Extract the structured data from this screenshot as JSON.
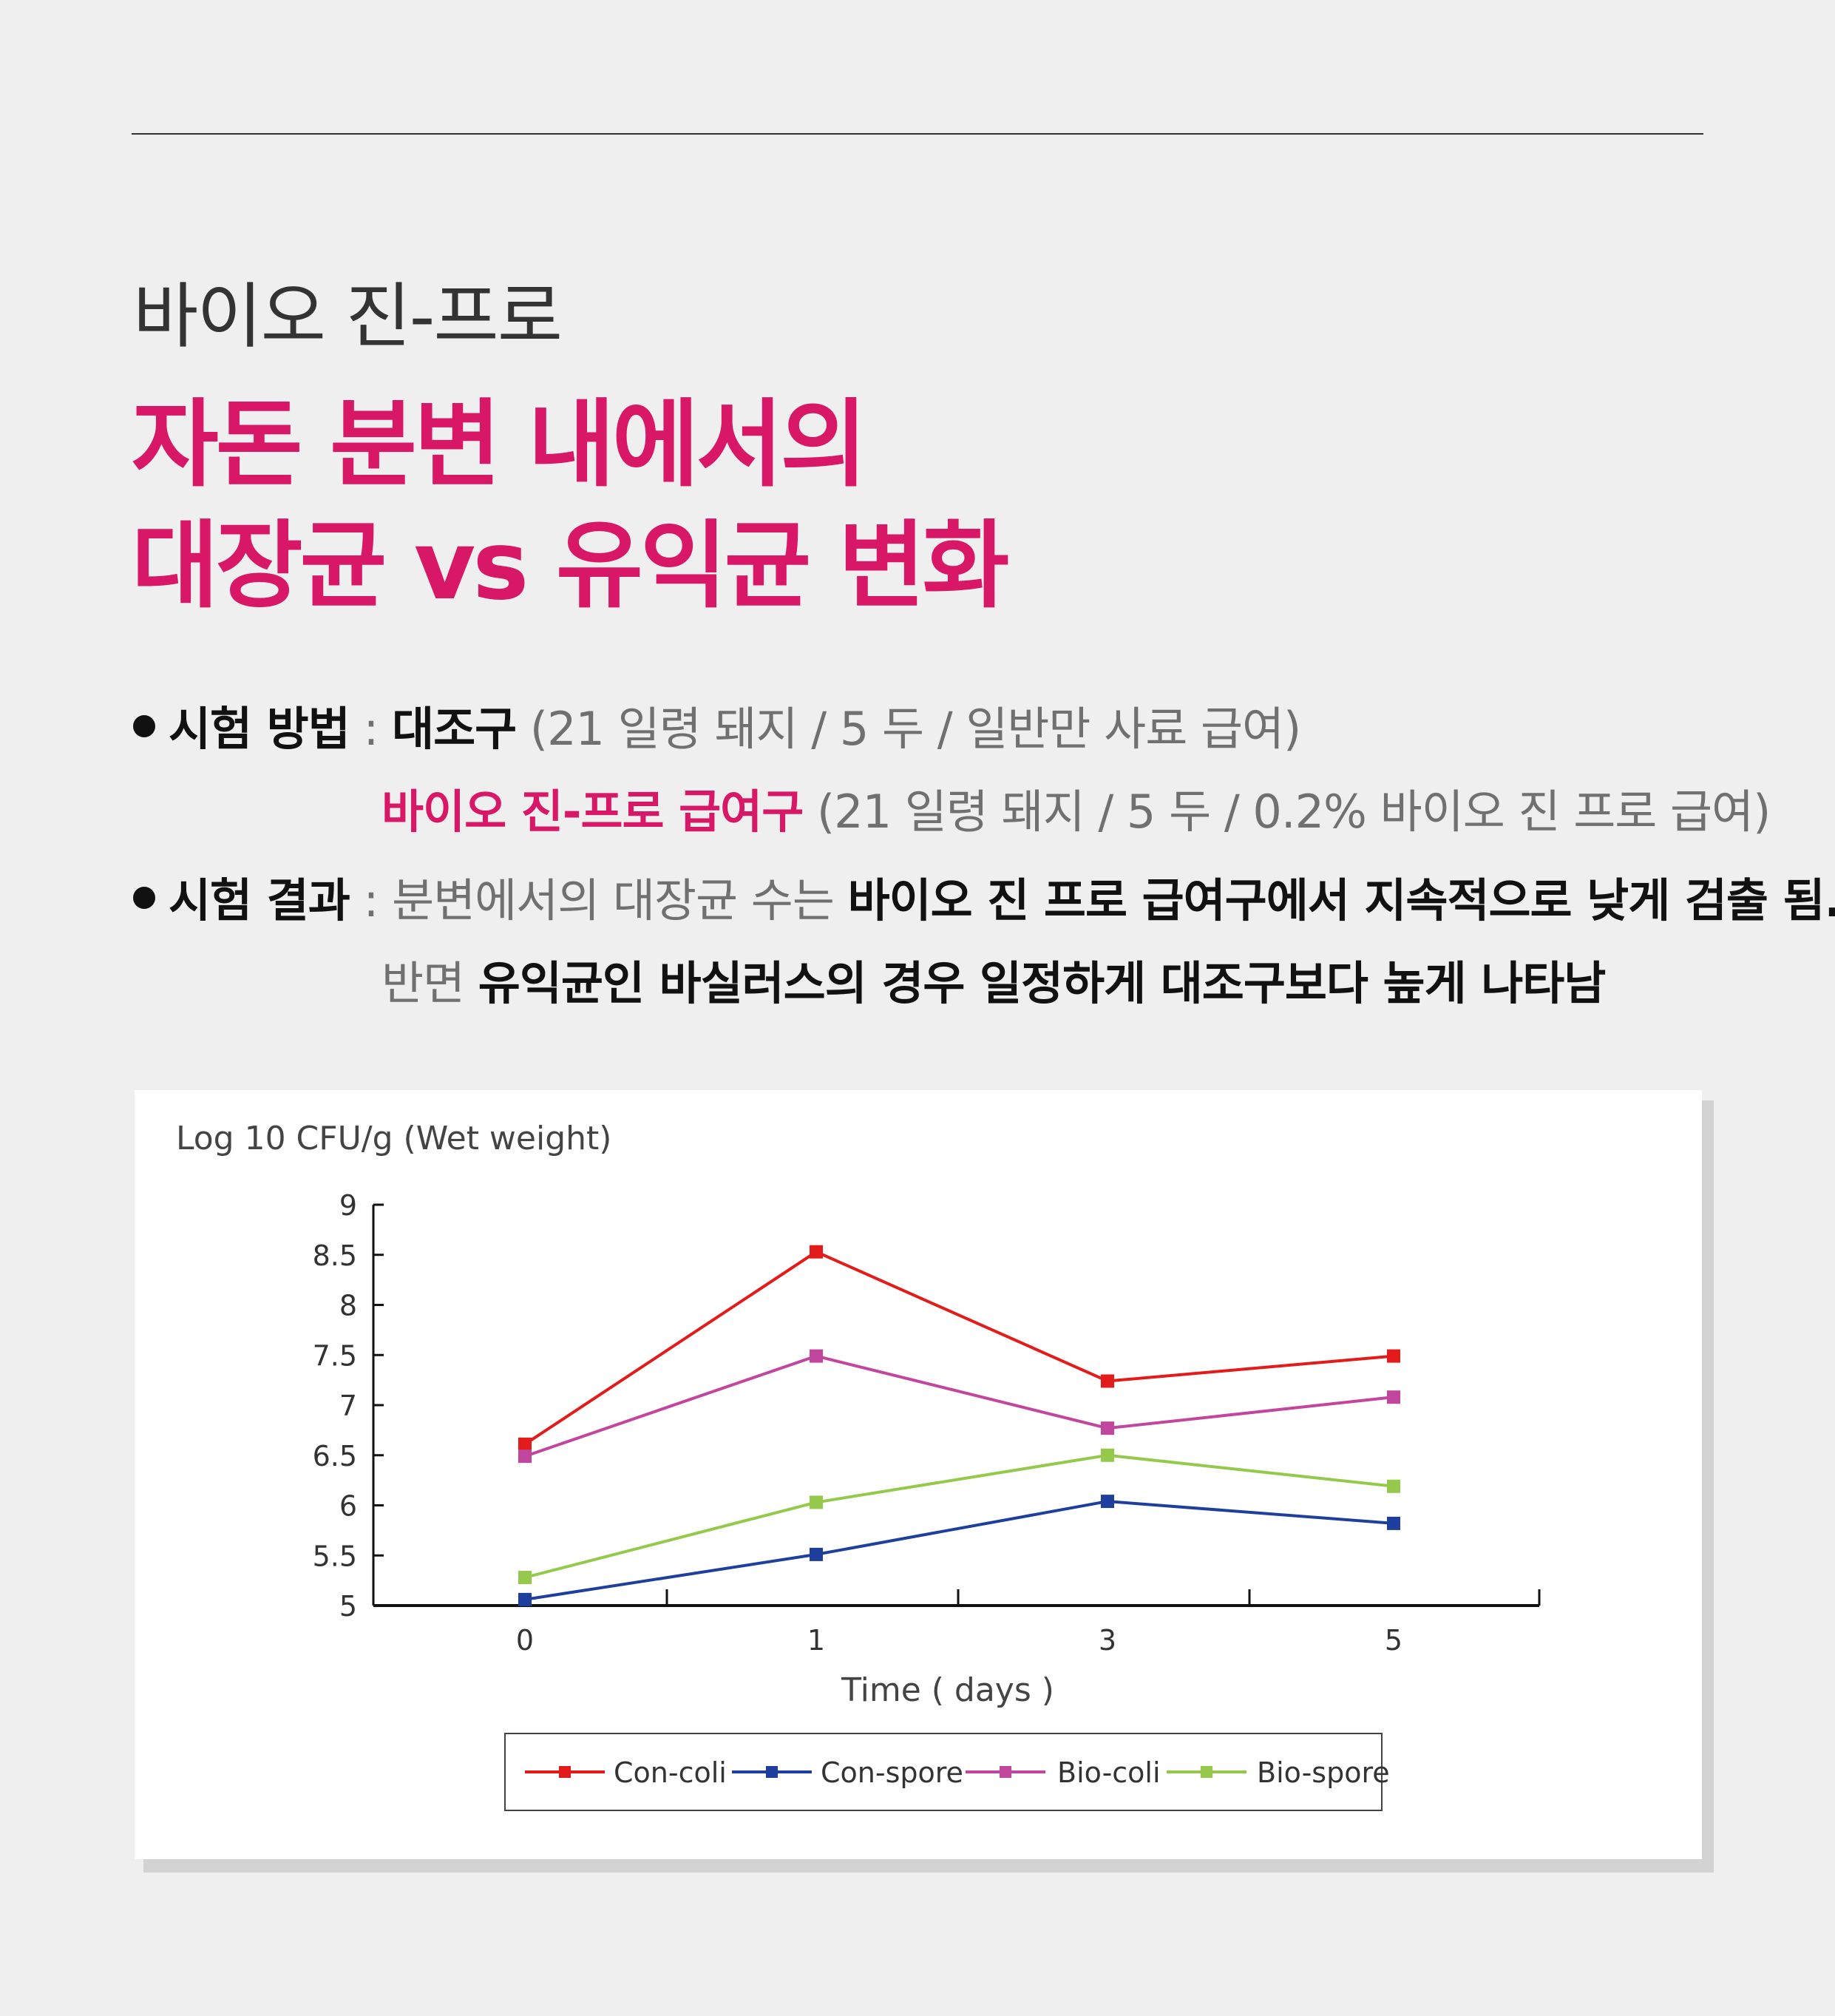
{
  "header": {
    "eyebrow": "바이오 진-프로",
    "headline_line1": "자돈 분변 내에서의",
    "headline_line2": "대장균 vs 유익균 변화"
  },
  "method": {
    "label": "시험 방법",
    "separator": " : ",
    "control_name": "대조구",
    "control_detail": " (21 일령 돼지 / 5 두 / 일반만 사료 급여)",
    "treatment_name": "바이오 진-프로 급여구",
    "treatment_detail": " (21 일령 돼지 / 5 두 / 0.2% 바이오 진 프로 급여)"
  },
  "result": {
    "label": "시험 결과",
    "separator": " : ",
    "line1_muted": "분변에서의 대장균 수는 ",
    "line1_strong": "바이오 진 프로 급여구에서 지속적으로 낮게 검출 됨.",
    "line2_muted": "반면 ",
    "line2_strong": "유익균인 바실러스의 경우 일정하게 대조구보다 높게 나타남"
  },
  "chart_data": {
    "type": "line",
    "title": "",
    "ylabel": "Log 10 CFU/g (Wet weight)",
    "xlabel": "Time ( days )",
    "categories": [
      "0",
      "1",
      "3",
      "5"
    ],
    "ylim": [
      5,
      9
    ],
    "yticks": [
      "5",
      "5.5",
      "6",
      "6.5",
      "7",
      "7.5",
      "8",
      "8.5",
      "9"
    ],
    "legend_position": "bottom-center",
    "grid": false,
    "series": [
      {
        "name": "Con-coli",
        "color": "#e31b1b",
        "values": [
          6.61,
          8.53,
          7.24,
          7.49
        ]
      },
      {
        "name": "Con-spore",
        "color": "#1e3f9e",
        "values": [
          5.06,
          5.51,
          6.04,
          5.82
        ]
      },
      {
        "name": "Bio-coli",
        "color": "#c2469e",
        "values": [
          6.49,
          7.49,
          6.77,
          7.08
        ]
      },
      {
        "name": "Bio-spore",
        "color": "#95c94b",
        "values": [
          5.28,
          6.03,
          6.5,
          6.19
        ]
      }
    ]
  }
}
